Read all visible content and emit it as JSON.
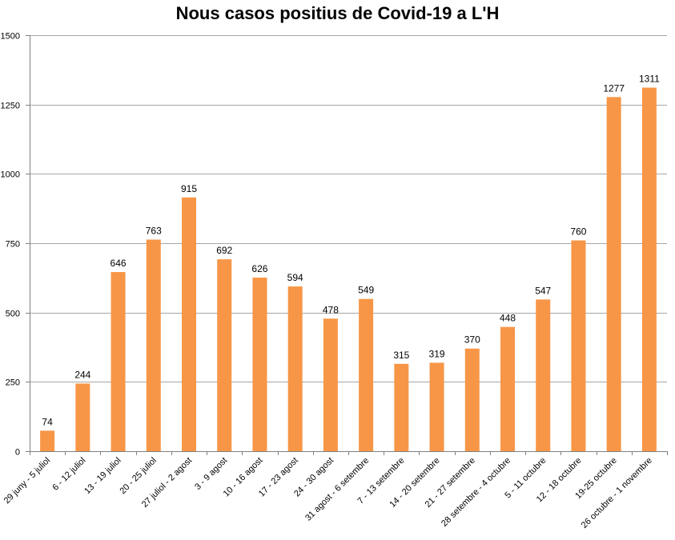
{
  "chart_data": {
    "type": "bar",
    "title": "Nous casos positius de Covid-19 a L'H",
    "xlabel": "",
    "ylabel": "",
    "ylim": [
      0,
      1500
    ],
    "yticks": [
      0,
      250,
      500,
      750,
      1000,
      1250,
      1500
    ],
    "grid": true,
    "legend": "none",
    "bar_color": "#F79646",
    "categories": [
      "29 juny - 5 juliol",
      "6 - 12 juliol",
      "13 - 19 juliol",
      "20 - 25 juliol",
      "27 juliol - 2 agost",
      "3 - 9 agost",
      "10 - 16 agost",
      "17 - 23 agost",
      "24 - 30 agost",
      "31 agost - 6 setembre",
      "7 - 13 setembre",
      "14 - 20 setembre",
      "21 - 27 setembre",
      "28 setembre - 4 octubre",
      "5 - 11 octubre",
      "12 - 18 octubre",
      "19-25 octubre",
      "26 octubre - 1 novembre"
    ],
    "values": [
      74,
      244,
      646,
      763,
      915,
      692,
      626,
      594,
      478,
      549,
      315,
      319,
      370,
      448,
      547,
      760,
      1277,
      1311
    ]
  }
}
